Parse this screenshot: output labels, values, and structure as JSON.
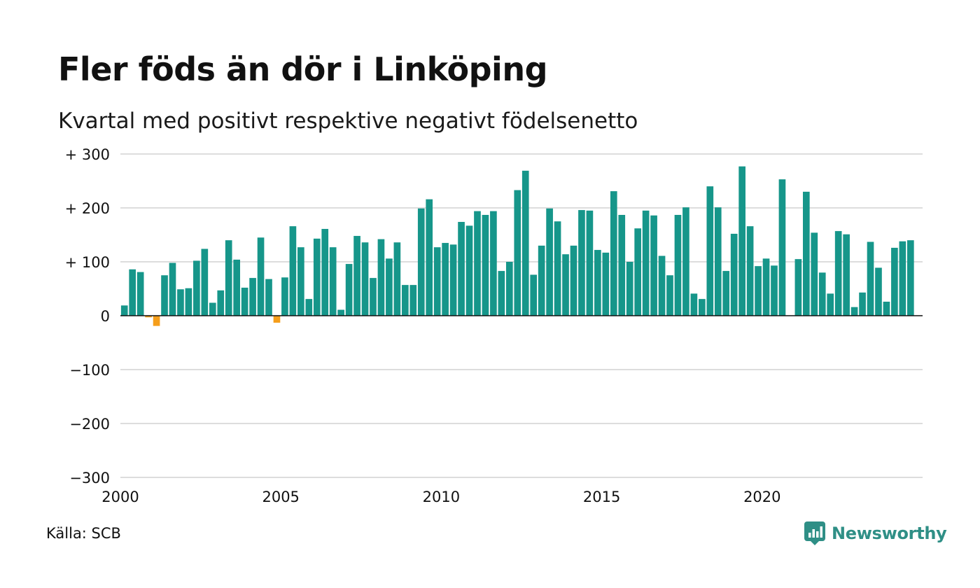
{
  "title": "Fler föds än dör i Linköping",
  "subtitle": "Kvartal med positivt respektive negativt födelsenetto",
  "source": "Källa: SCB",
  "brand": "Newsworthy",
  "colors": {
    "positive": "#16968a",
    "negative": "#f59e1b",
    "grid": "#dddddd",
    "baseline": "#111111",
    "brand": "#2f8f86"
  },
  "chart_data": {
    "type": "bar",
    "ylim": [
      -300,
      300
    ],
    "yticks": [
      300,
      200,
      100,
      0,
      -100,
      -200,
      -300
    ],
    "ytick_labels": [
      "+ 300",
      "+ 200",
      "+ 100",
      "0",
      "−100",
      "−200",
      "−300"
    ],
    "xlim": [
      2000,
      2025
    ],
    "xticks": [
      2000,
      2005,
      2010,
      2015,
      2020
    ],
    "xtick_labels": [
      "2000",
      "2005",
      "2010",
      "2015",
      "2020"
    ],
    "grid": true,
    "start_year": 2000,
    "periods_per_year": 4,
    "values": [
      19,
      86,
      81,
      -3,
      -19,
      75,
      98,
      49,
      51,
      102,
      124,
      24,
      47,
      140,
      104,
      52,
      70,
      145,
      68,
      -13,
      71,
      166,
      127,
      31,
      143,
      161,
      127,
      11,
      96,
      148,
      136,
      70,
      142,
      106,
      136,
      57,
      57,
      199,
      216,
      127,
      135,
      132,
      174,
      167,
      194,
      187,
      194,
      83,
      100,
      233,
      269,
      76,
      130,
      199,
      175,
      114,
      130,
      196,
      195,
      122,
      117,
      231,
      187,
      100,
      162,
      195,
      186,
      111,
      75,
      187,
      201,
      41,
      31,
      240,
      201,
      83,
      152,
      277,
      166,
      92,
      106,
      93,
      253,
      0,
      105,
      230,
      154,
      80,
      41,
      157,
      151,
      16,
      43,
      137,
      89,
      26,
      126,
      138,
      140
    ]
  }
}
